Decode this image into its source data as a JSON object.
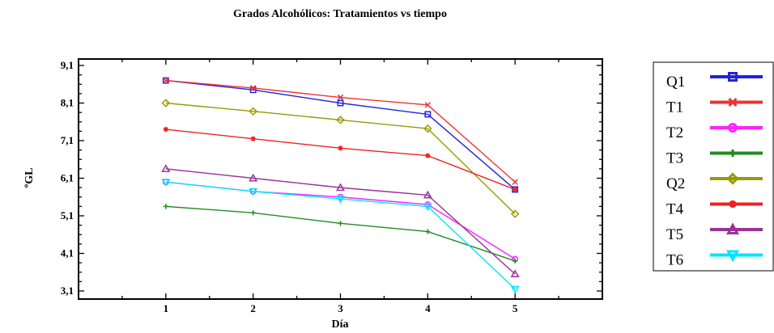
{
  "chart_data": {
    "type": "line",
    "title": "Grados Alcohólicos: Tratamientos vs tiempo",
    "xlabel": "Día",
    "ylabel": "ºGL",
    "x": [
      1,
      2,
      3,
      4,
      5
    ],
    "x_ticks": [
      "1",
      "2",
      "3",
      "4",
      "5"
    ],
    "xlim": [
      0,
      6
    ],
    "y_ticks": [
      "9,1",
      "8,1",
      "7,1",
      "6,1",
      "5,1",
      "4,1",
      "3,1"
    ],
    "y_tick_values": [
      9.1,
      8.1,
      7.1,
      6.1,
      5.1,
      4.1,
      3.1
    ],
    "ylim": [
      3.1,
      9.1
    ],
    "grid": false,
    "legend_position": "right",
    "series": [
      {
        "name": "Q1",
        "color": "#2222dd",
        "marker": "square",
        "values": [
          8.7,
          8.45,
          8.1,
          7.8,
          5.8
        ]
      },
      {
        "name": "T1",
        "color": "#ee3333",
        "marker": "x",
        "values": [
          8.7,
          8.5,
          8.25,
          8.05,
          6.0
        ]
      },
      {
        "name": "T2",
        "color": "#ff22ff",
        "marker": "circle",
        "values": [
          6.0,
          5.75,
          5.6,
          5.4,
          3.95
        ]
      },
      {
        "name": "T3",
        "color": "#228b22",
        "marker": "plus",
        "values": [
          5.35,
          5.18,
          4.9,
          4.68,
          3.9
        ]
      },
      {
        "name": "Q2",
        "color": "#999900",
        "marker": "diamond",
        "values": [
          8.1,
          7.88,
          7.65,
          7.42,
          5.15
        ]
      },
      {
        "name": "T4",
        "color": "#ee2222",
        "marker": "star",
        "values": [
          7.4,
          7.15,
          6.9,
          6.7,
          5.8
        ]
      },
      {
        "name": "T5",
        "color": "#993399",
        "marker": "triangle",
        "values": [
          6.35,
          6.1,
          5.85,
          5.65,
          3.55
        ]
      },
      {
        "name": "T6",
        "color": "#00e5ff",
        "marker": "triangle-down",
        "values": [
          6.0,
          5.75,
          5.55,
          5.35,
          3.15
        ]
      }
    ]
  }
}
